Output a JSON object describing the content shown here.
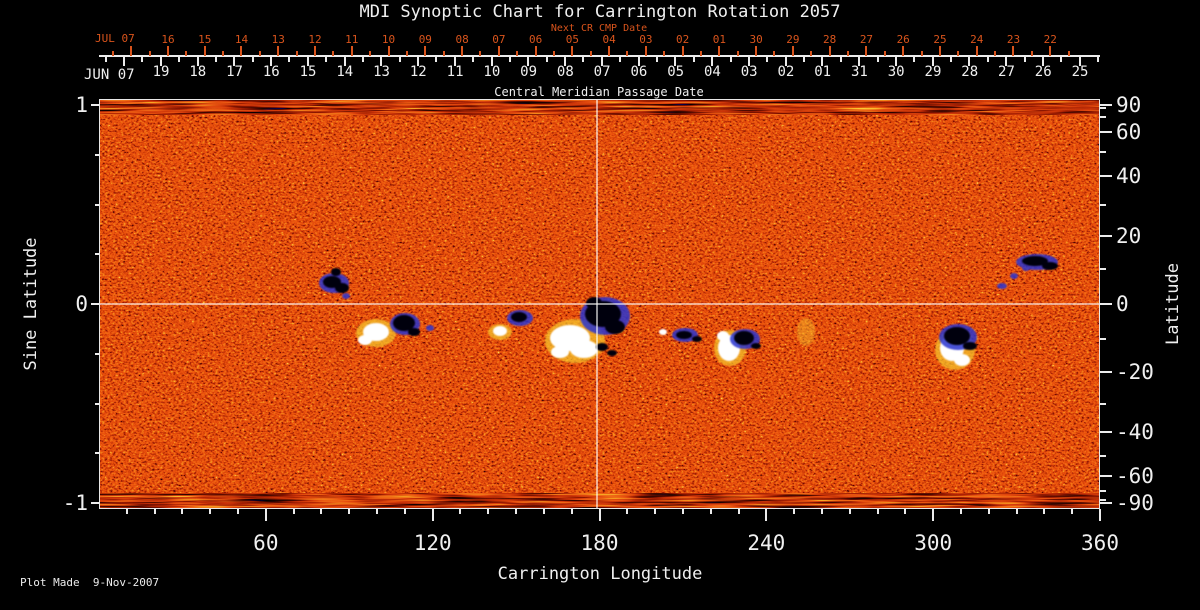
{
  "title": "MDI Synoptic Chart for Carrington Rotation 2057",
  "footer": {
    "plot_made": "Plot Made  9-Nov-2007"
  },
  "colors": {
    "background": "#000000",
    "axis_text": "#f0f0f0",
    "next_cr_accent": "#d9541c",
    "magnetogram_neutral_orange": "#e8500e",
    "negative_polarity_dark": "#04040e",
    "negative_polarity_blue": "#2a35d0",
    "positive_polarity_yellow": "#f4c02c",
    "positive_polarity_white": "#ffffff"
  },
  "axes": {
    "next_cr": {
      "label": "Next CR CMP Date",
      "month_label": "JUL 07",
      "tick_labels": [
        "16",
        "15",
        "14",
        "13",
        "12",
        "11",
        "10",
        "09",
        "08",
        "07",
        "06",
        "05",
        "04",
        "03",
        "02",
        "01",
        "30",
        "29",
        "28",
        "27",
        "26",
        "25",
        "24",
        "23",
        "22"
      ]
    },
    "cmp": {
      "label": "Central Meridian Passage Date",
      "month_label": "JUN 07",
      "tick_labels": [
        "19",
        "18",
        "17",
        "16",
        "15",
        "14",
        "13",
        "12",
        "11",
        "10",
        "09",
        "08",
        "07",
        "06",
        "05",
        "04",
        "03",
        "02",
        "01",
        "31",
        "30",
        "29",
        "28",
        "27",
        "26",
        "25"
      ]
    },
    "longitude": {
      "label": "Carrington Longitude",
      "tick_labels": [
        "60",
        "120",
        "180",
        "240",
        "300",
        "360"
      ]
    },
    "sine_latitude": {
      "label": "Sine Latitude",
      "tick_labels": [
        "1",
        "0",
        "-1"
      ]
    },
    "latitude": {
      "label": "Latitude",
      "tick_labels": [
        "90",
        "60",
        "40",
        "20",
        "0",
        "-20",
        "-40",
        "-60",
        "-90"
      ]
    }
  },
  "chart_data": {
    "type": "heatmap",
    "title": "MDI Synoptic Chart for Carrington Rotation 2057",
    "xlabel": "Carrington Longitude",
    "ylabel_left": "Sine Latitude",
    "ylabel_right": "Latitude",
    "xlim": [
      0,
      360
    ],
    "ylim_sine_latitude": [
      -1,
      1
    ],
    "x_ticks": [
      60,
      120,
      180,
      240,
      300,
      360
    ],
    "x_minor_tick_step_deg": 10,
    "left_ticks_sine_latitude": [
      1,
      0,
      -1
    ],
    "left_minor_tick_step_sine": 0.25,
    "right_ticks_latitude": [
      90,
      60,
      40,
      20,
      0,
      -20,
      -40,
      -60,
      -90
    ],
    "right_minor_tick_step_deg": 10,
    "top_axes": {
      "next_cr_cmp_date": {
        "month": "JUL 07",
        "days": [
          16,
          15,
          14,
          13,
          12,
          11,
          10,
          9,
          8,
          7,
          6,
          5,
          4,
          3,
          2,
          1,
          30,
          29,
          28,
          27,
          26,
          25,
          24,
          23,
          22
        ]
      },
      "cmp_date": {
        "month": "JUN 07",
        "days": [
          19,
          18,
          17,
          16,
          15,
          14,
          13,
          12,
          11,
          10,
          9,
          8,
          7,
          6,
          5,
          4,
          3,
          2,
          1,
          31,
          30,
          29,
          28,
          27,
          26,
          25
        ]
      }
    },
    "reference_lines": {
      "vertical_longitude": 180,
      "horizontal_sine_latitude": 0
    },
    "colormap": {
      "description": "Full-disk magnetogram synoptic map: neutral field rendered bright orange with dark-red mottling; negative polarity as black/dark-navy patches with blue fringes; positive polarity as white patches with yellow fringes; noisy streaked bands at both poles.",
      "neutral": "#e8500e",
      "negative": [
        "#04040e",
        "#2a35d0"
      ],
      "positive": [
        "#ffffff",
        "#f4c02c"
      ]
    },
    "active_regions": [
      {
        "longitude": 85,
        "sine_latitude": 0.1,
        "polarity": "negative"
      },
      {
        "longitude": 105,
        "sine_latitude": -0.13,
        "polarity": "bipolar"
      },
      {
        "longitude": 148,
        "sine_latitude": -0.07,
        "polarity": "bipolar"
      },
      {
        "longitude": 177,
        "sine_latitude": -0.12,
        "polarity": "bipolar",
        "note": "largest active region, at central meridian crosshair"
      },
      {
        "longitude": 208,
        "sine_latitude": -0.16,
        "polarity": "bipolar"
      },
      {
        "longitude": 230,
        "sine_latitude": -0.17,
        "polarity": "bipolar"
      },
      {
        "longitude": 254,
        "sine_latitude": -0.14,
        "polarity": "positive-faint"
      },
      {
        "longitude": 309,
        "sine_latitude": -0.19,
        "polarity": "bipolar"
      },
      {
        "longitude": 337,
        "sine_latitude": 0.21,
        "polarity": "negative"
      }
    ],
    "footer": "Plot Made  9-Nov-2007"
  }
}
